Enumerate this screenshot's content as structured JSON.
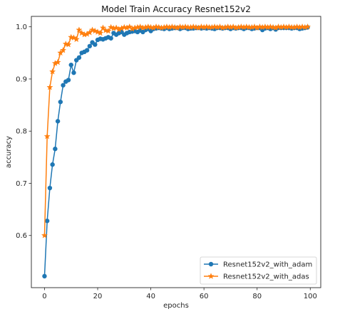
{
  "chart_data": {
    "type": "line",
    "title": "Model Train Accuracy Resnet152v2",
    "xlabel": "epochs",
    "ylabel": "accuracy",
    "xlim": [
      -4.95,
      103.95
    ],
    "ylim": [
      0.5,
      1.02
    ],
    "xticks": [
      0,
      20,
      40,
      60,
      80,
      100
    ],
    "yticks": [
      0.6,
      0.7,
      0.8,
      0.9,
      1.0
    ],
    "ytick_labels": [
      "0.6",
      "0.7",
      "0.8",
      "0.9",
      "1.0"
    ],
    "grid": false,
    "legend_position": "lower-right",
    "series": [
      {
        "name": "Resnet152v2_with_adam",
        "color": "#1f77b4",
        "marker": "circle",
        "x": [
          0,
          1,
          2,
          3,
          4,
          5,
          6,
          7,
          8,
          9,
          10,
          11,
          12,
          13,
          14,
          15,
          16,
          17,
          18,
          19,
          20,
          21,
          22,
          23,
          24,
          25,
          26,
          27,
          28,
          29,
          30,
          31,
          32,
          33,
          34,
          35,
          36,
          37,
          38,
          39,
          40,
          41,
          42,
          43,
          44,
          45,
          46,
          47,
          48,
          49,
          50,
          51,
          52,
          53,
          54,
          55,
          56,
          57,
          58,
          59,
          60,
          61,
          62,
          63,
          64,
          65,
          66,
          67,
          68,
          69,
          70,
          71,
          72,
          73,
          74,
          75,
          76,
          77,
          78,
          79,
          80,
          81,
          82,
          83,
          84,
          85,
          86,
          87,
          88,
          89,
          90,
          91,
          92,
          93,
          94,
          95,
          96,
          97,
          98,
          99
        ],
        "values": [
          0.522,
          0.628,
          0.691,
          0.736,
          0.766,
          0.819,
          0.856,
          0.888,
          0.895,
          0.898,
          0.927,
          0.912,
          0.936,
          0.941,
          0.95,
          0.952,
          0.955,
          0.963,
          0.97,
          0.966,
          0.975,
          0.977,
          0.976,
          0.978,
          0.98,
          0.978,
          0.988,
          0.985,
          0.988,
          0.99,
          0.985,
          0.988,
          0.99,
          0.991,
          0.992,
          0.99,
          0.993,
          0.99,
          0.994,
          0.996,
          0.992,
          0.996,
          0.997,
          0.998,
          0.997,
          0.996,
          0.998,
          0.996,
          0.997,
          0.998,
          0.998,
          0.996,
          0.998,
          0.998,
          0.996,
          0.997,
          0.997,
          0.998,
          0.998,
          0.997,
          0.998,
          0.997,
          0.998,
          0.997,
          0.996,
          0.998,
          0.998,
          0.997,
          0.998,
          0.998,
          0.996,
          0.998,
          0.997,
          0.998,
          0.998,
          0.996,
          0.998,
          0.998,
          0.996,
          0.997,
          0.998,
          0.998,
          0.994,
          0.997,
          0.998,
          0.996,
          0.998,
          0.995,
          0.998,
          0.998,
          0.998,
          0.998,
          0.998,
          0.997,
          0.998,
          0.998,
          0.996,
          0.997,
          0.998,
          0.999
        ]
      },
      {
        "name": "Resnet152v2_with_adas",
        "color": "#ff7f0e",
        "marker": "star",
        "x": [
          0,
          1,
          2,
          3,
          4,
          5,
          6,
          7,
          8,
          9,
          10,
          11,
          12,
          13,
          14,
          15,
          16,
          17,
          18,
          19,
          20,
          21,
          22,
          23,
          24,
          25,
          26,
          27,
          28,
          29,
          30,
          31,
          32,
          33,
          34,
          35,
          36,
          37,
          38,
          39,
          40,
          41,
          42,
          43,
          44,
          45,
          46,
          47,
          48,
          49,
          50,
          51,
          52,
          53,
          54,
          55,
          56,
          57,
          58,
          59,
          60,
          61,
          62,
          63,
          64,
          65,
          66,
          67,
          68,
          69,
          70,
          71,
          72,
          73,
          74,
          75,
          76,
          77,
          78,
          79,
          80,
          81,
          82,
          83,
          84,
          85,
          86,
          87,
          88,
          89,
          90,
          91,
          92,
          93,
          94,
          95,
          96,
          97,
          98,
          99
        ],
        "values": [
          0.6,
          0.79,
          0.884,
          0.914,
          0.93,
          0.932,
          0.95,
          0.955,
          0.967,
          0.966,
          0.98,
          0.979,
          0.976,
          0.994,
          0.988,
          0.985,
          0.986,
          0.989,
          0.994,
          0.992,
          0.99,
          0.988,
          0.998,
          0.993,
          0.992,
          0.999,
          0.997,
          0.998,
          0.995,
          0.997,
          0.999,
          0.998,
          1.0,
          0.996,
          0.998,
          0.999,
          1.0,
          0.998,
          0.999,
          1.0,
          0.999,
          0.998,
          1.0,
          0.999,
          0.998,
          0.999,
          1.0,
          0.999,
          1.0,
          0.999,
          0.998,
          1.0,
          0.999,
          1.0,
          0.999,
          0.999,
          1.0,
          0.999,
          0.998,
          1.0,
          0.999,
          1.0,
          0.999,
          0.999,
          1.0,
          0.999,
          1.0,
          0.998,
          0.999,
          1.0,
          0.999,
          1.0,
          0.998,
          0.999,
          1.0,
          0.999,
          1.0,
          0.999,
          0.999,
          1.0,
          0.998,
          1.0,
          0.999,
          1.0,
          0.999,
          1.0,
          0.999,
          0.998,
          1.0,
          0.999,
          1.0,
          0.999,
          1.0,
          0.999,
          0.999,
          1.0,
          0.999,
          1.0,
          0.999,
          1.0
        ]
      }
    ]
  }
}
